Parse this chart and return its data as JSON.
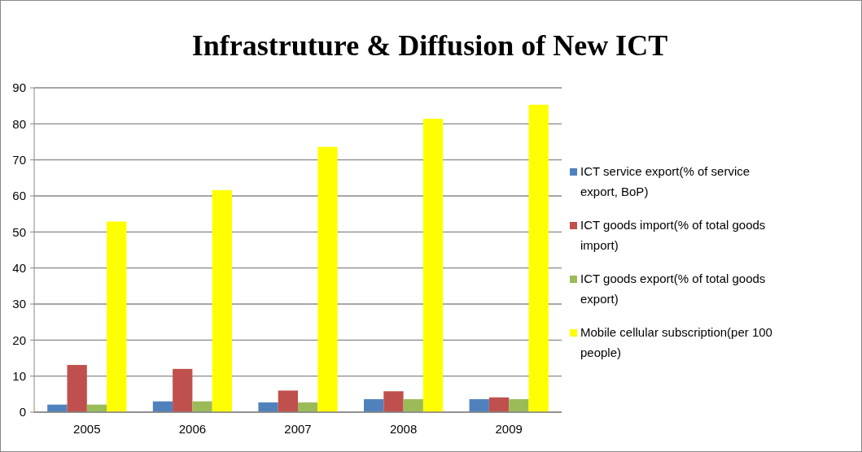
{
  "chart_data": {
    "type": "bar",
    "title": "Infrastruture & Diffusion of New ICT",
    "categories": [
      "2005",
      "2006",
      "2007",
      "2008",
      "2009"
    ],
    "series": [
      {
        "name": "ICT service export(% of service export, BoP)",
        "color": "#4f81bd",
        "values": [
          2.1,
          3.0,
          2.7,
          3.6,
          3.6
        ]
      },
      {
        "name": "ICT goods import(% of total goods import)",
        "color": "#c0504d",
        "values": [
          13.1,
          12.0,
          6.0,
          5.8,
          4.1
        ]
      },
      {
        "name": "ICT goods export(% of total goods export)",
        "color": "#9bbb59",
        "values": [
          2.1,
          3.0,
          2.7,
          3.6,
          3.6
        ]
      },
      {
        "name": "Mobile cellular subscription(per 100 people)",
        "color": "#ffff00",
        "values": [
          52.9,
          61.6,
          73.6,
          81.4,
          85.3
        ]
      }
    ],
    "ylim": [
      0,
      90
    ],
    "yticks": [
      0,
      10,
      20,
      30,
      40,
      50,
      60,
      70,
      80,
      90
    ],
    "grid": "y",
    "legend": "right"
  }
}
